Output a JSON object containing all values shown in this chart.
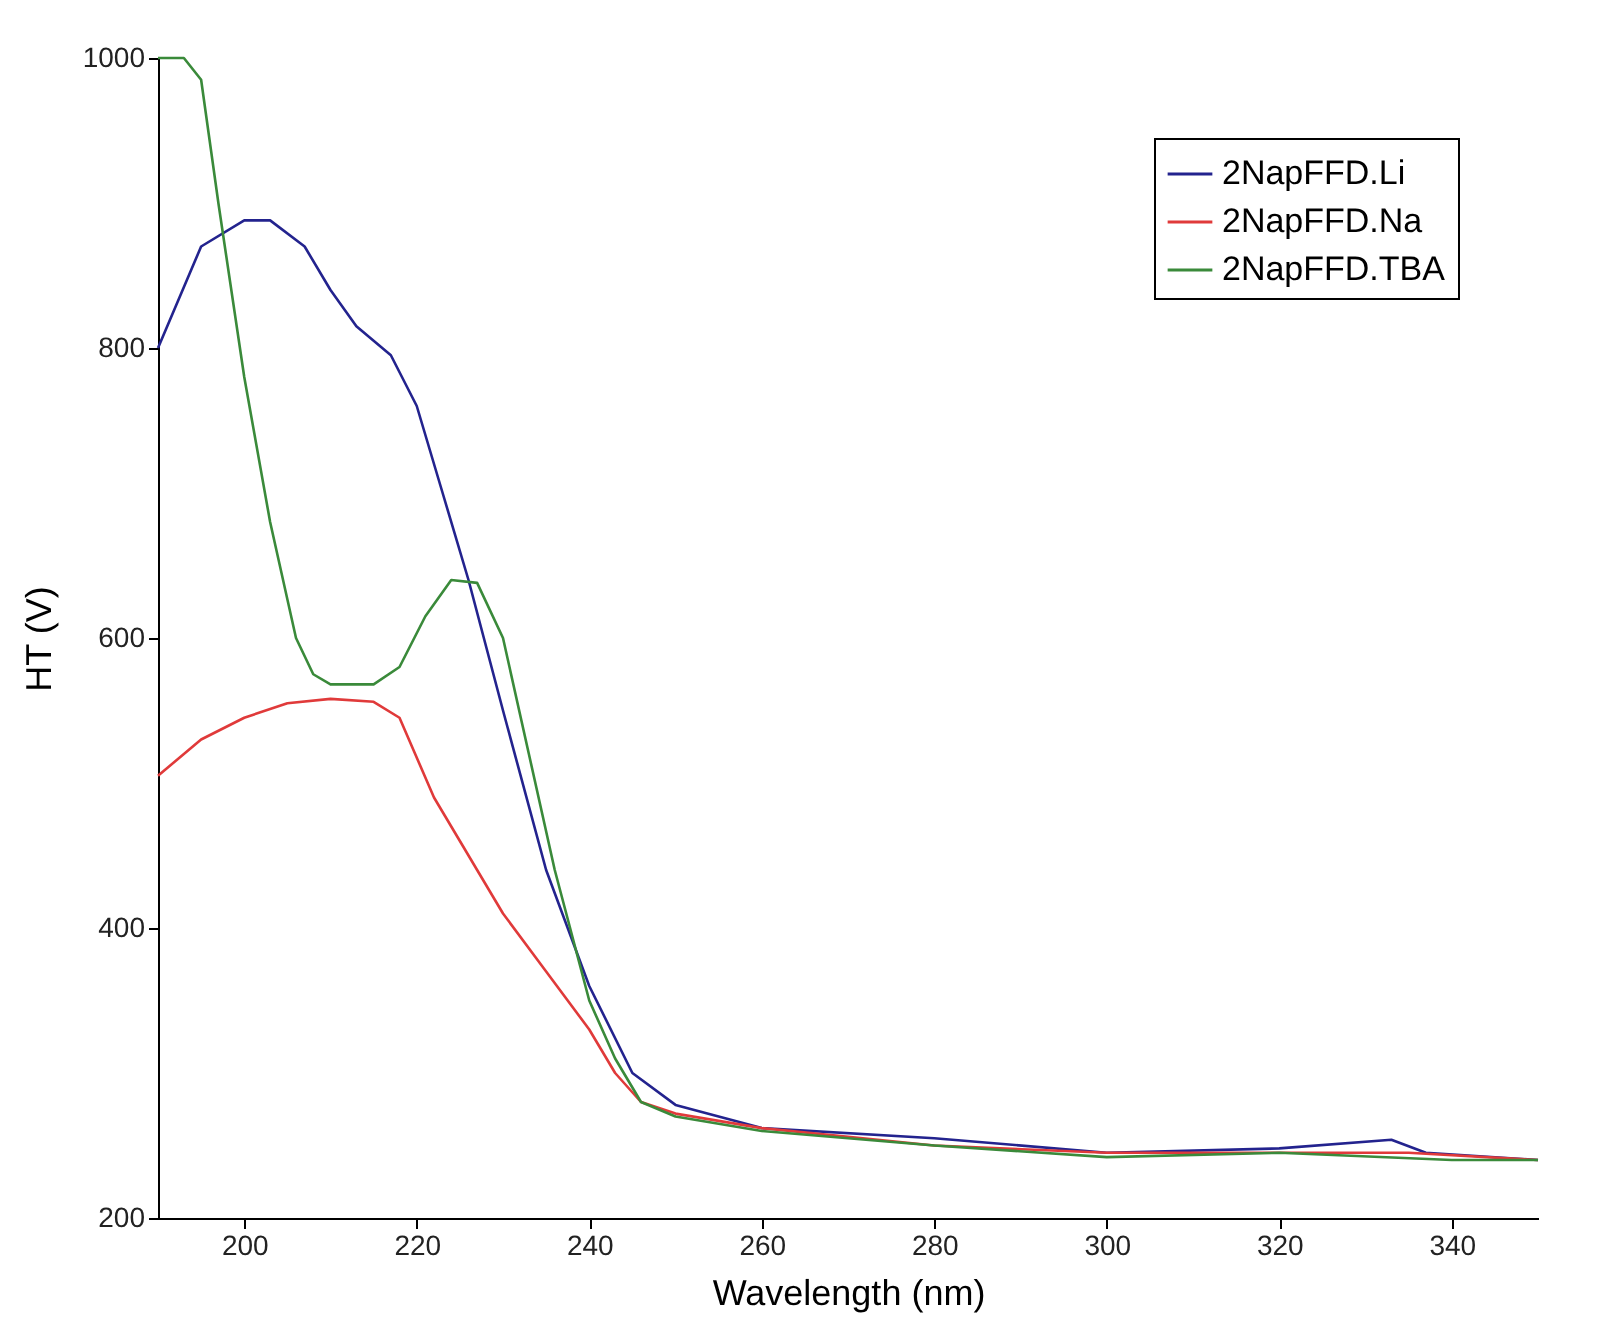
{
  "chart_data": {
    "type": "line",
    "xlabel": "Wavelength (nm)",
    "ylabel": "HT (V)",
    "xlim": [
      190,
      350
    ],
    "xticks": [
      200,
      220,
      240,
      260,
      280,
      300,
      320,
      340
    ],
    "ylim": [
      200,
      1000
    ],
    "yticks": [
      200,
      400,
      600,
      800,
      1000
    ],
    "grid": false,
    "legend": "top right",
    "series": [
      {
        "name": "2NapFFD.Li",
        "color": "#23238e",
        "x": [
          190,
          195,
          200,
          203,
          207,
          210,
          213,
          217,
          220,
          223,
          226,
          230,
          235,
          240,
          245,
          250,
          260,
          280,
          300,
          320,
          333,
          337,
          350
        ],
        "values": [
          800,
          870,
          888,
          888,
          870,
          840,
          815,
          795,
          760,
          700,
          640,
          550,
          440,
          360,
          300,
          278,
          262,
          255,
          245,
          248,
          254,
          245,
          240
        ]
      },
      {
        "name": "2NapFFD.Na",
        "color": "#e03a3a",
        "x": [
          190,
          195,
          200,
          205,
          210,
          215,
          218,
          222,
          226,
          230,
          235,
          240,
          243,
          246,
          250,
          260,
          280,
          300,
          320,
          335,
          350
        ],
        "values": [
          505,
          530,
          545,
          555,
          558,
          556,
          545,
          490,
          450,
          410,
          370,
          330,
          300,
          280,
          272,
          262,
          250,
          245,
          245,
          245,
          240
        ]
      },
      {
        "name": "2NapFFD.TBA",
        "color": "#3a8a3a",
        "x": [
          190,
          193,
          195,
          197,
          200,
          203,
          206,
          208,
          210,
          215,
          218,
          221,
          224,
          227,
          230,
          233,
          236,
          240,
          243,
          246,
          250,
          260,
          280,
          300,
          320,
          340,
          350
        ],
        "values": [
          1000,
          1000,
          985,
          900,
          780,
          680,
          600,
          575,
          568,
          568,
          580,
          615,
          640,
          638,
          600,
          520,
          440,
          350,
          310,
          280,
          270,
          260,
          250,
          242,
          245,
          240,
          240
        ]
      }
    ]
  }
}
